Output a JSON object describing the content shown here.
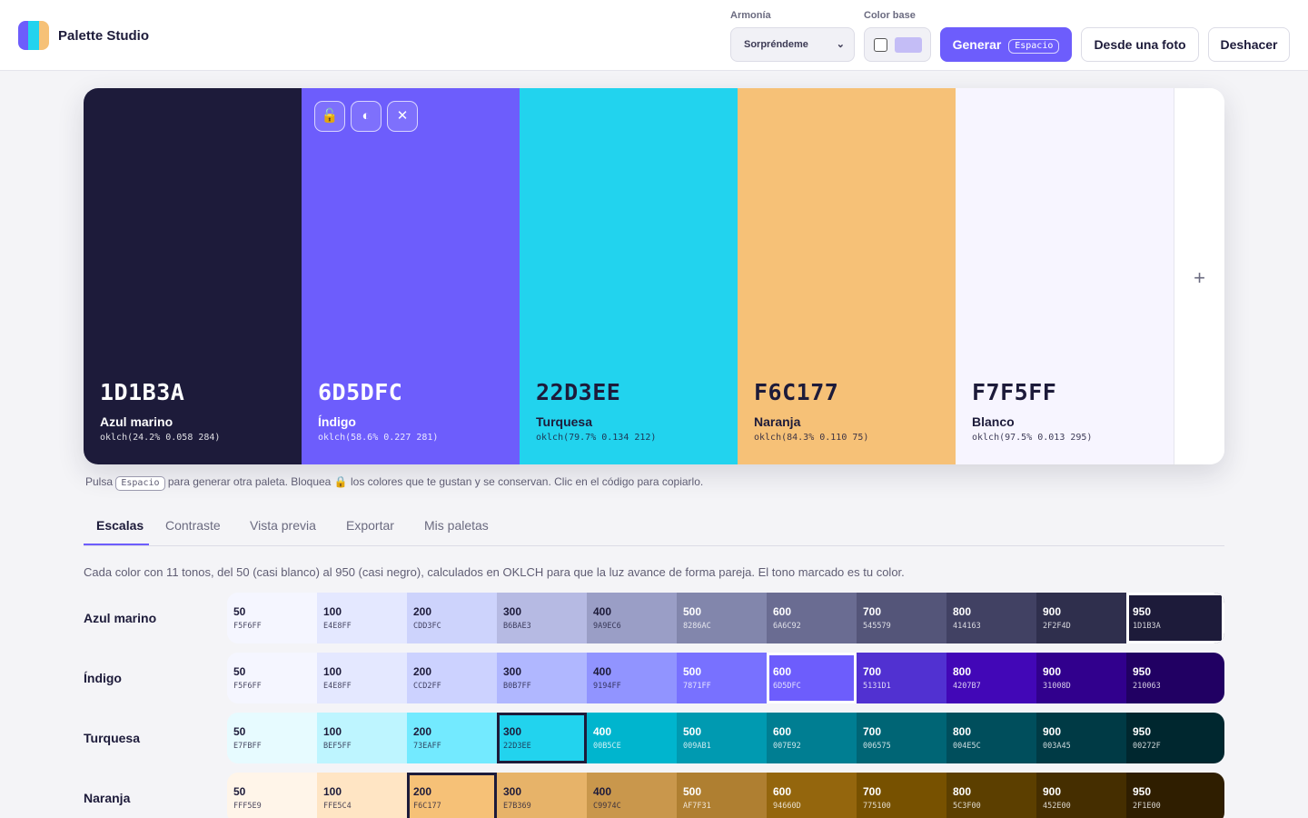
{
  "app": {
    "title": "Palette Studio",
    "logo_colors": [
      "#6d5dfc",
      "#22d3ee",
      "#f6c177"
    ]
  },
  "toolbar": {
    "harmony_label": "Armonía",
    "harmony_value": "Sorpréndeme",
    "base_color_label": "Color base",
    "base_color_swatch": "#c4bdf6",
    "generate_label": "Generar",
    "generate_kbd": "Espacio",
    "from_photo_label": "Desde una foto",
    "undo_label": "Deshacer"
  },
  "palette": {
    "colors": [
      {
        "hex": "1D1B3A",
        "name": "Azul marino",
        "oklch": "oklch(24.2% 0.058 284)",
        "bg": "#1d1b3a",
        "fg": "#ffffff"
      },
      {
        "hex": "6D5DFC",
        "name": "Índigo",
        "oklch": "oklch(58.6% 0.227 281)",
        "bg": "#6d5dfc",
        "fg": "#ffffff"
      },
      {
        "hex": "22D3EE",
        "name": "Turquesa",
        "oklch": "oklch(79.7% 0.134 212)",
        "bg": "#22d3ee",
        "fg": "#1d1b3a"
      },
      {
        "hex": "F6C177",
        "name": "Naranja",
        "oklch": "oklch(84.3% 0.110 75)",
        "bg": "#f6c177",
        "fg": "#1d1b3a"
      },
      {
        "hex": "F7F5FF",
        "name": "Blanco",
        "oklch": "oklch(97.5% 0.013 295)",
        "bg": "#f7f5ff",
        "fg": "#1d1b3a"
      }
    ],
    "tools": {
      "lock_icon": "🔓",
      "contrast_icon": "◐",
      "remove_icon": "✕"
    },
    "add_label": "+"
  },
  "hint": {
    "before": "Pulsa",
    "kbd": "Espacio",
    "middle": "para generar otra paleta. Bloquea",
    "lock_icon": "🔒",
    "after": "los colores que te gustan y se conservan. Clic en el código para copiarlo."
  },
  "tabs": [
    "Escalas",
    "Contraste",
    "Vista previa",
    "Exportar",
    "Mis paletas"
  ],
  "scales": {
    "intro": "Cada color con 11 tonos, del 50 (casi blanco) al 950 (casi negro), calculados en OKLCH para que la luz avance de forma pareja. El tono marcado es tu color.",
    "rows": [
      {
        "name": "Azul marino",
        "selected": 10,
        "steps": [
          [
            "50",
            "F5F6FF"
          ],
          [
            "100",
            "E4E8FF"
          ],
          [
            "200",
            "CDD3FC"
          ],
          [
            "300",
            "B6BAE3"
          ],
          [
            "400",
            "9A9EC6"
          ],
          [
            "500",
            "8286AC"
          ],
          [
            "600",
            "6A6C92"
          ],
          [
            "700",
            "545579"
          ],
          [
            "800",
            "414163"
          ],
          [
            "900",
            "2F2F4D"
          ],
          [
            "950",
            "1D1B3A"
          ]
        ]
      },
      {
        "name": "Índigo",
        "selected": 6,
        "steps": [
          [
            "50",
            "F5F6FF"
          ],
          [
            "100",
            "E4E8FF"
          ],
          [
            "200",
            "CCD2FF"
          ],
          [
            "300",
            "B0B7FF"
          ],
          [
            "400",
            "9194FF"
          ],
          [
            "500",
            "7871FF"
          ],
          [
            "600",
            "6D5DFC"
          ],
          [
            "700",
            "5131D1"
          ],
          [
            "800",
            "4207B7"
          ],
          [
            "900",
            "31008D"
          ],
          [
            "950",
            "210063"
          ]
        ]
      },
      {
        "name": "Turquesa",
        "selected": 3,
        "steps": [
          [
            "50",
            "E7FBFF"
          ],
          [
            "100",
            "BEF5FF"
          ],
          [
            "200",
            "73EAFF"
          ],
          [
            "300",
            "22D3EE"
          ],
          [
            "400",
            "00B5CE"
          ],
          [
            "500",
            "009AB1"
          ],
          [
            "600",
            "007E92"
          ],
          [
            "700",
            "006575"
          ],
          [
            "800",
            "004E5C"
          ],
          [
            "900",
            "003A45"
          ],
          [
            "950",
            "00272F"
          ]
        ]
      },
      {
        "name": "Naranja",
        "selected": 2,
        "steps": [
          [
            "50",
            "FFF5E9"
          ],
          [
            "100",
            "FFE5C4"
          ],
          [
            "200",
            "F6C177"
          ],
          [
            "300",
            "E7B369"
          ],
          [
            "400",
            "C9974C"
          ],
          [
            "500",
            "AF7F31"
          ],
          [
            "600",
            "94660D"
          ],
          [
            "700",
            "775100"
          ],
          [
            "800",
            "5C3F00"
          ],
          [
            "900",
            "452E00"
          ],
          [
            "950",
            "2F1E00"
          ]
        ]
      }
    ]
  }
}
